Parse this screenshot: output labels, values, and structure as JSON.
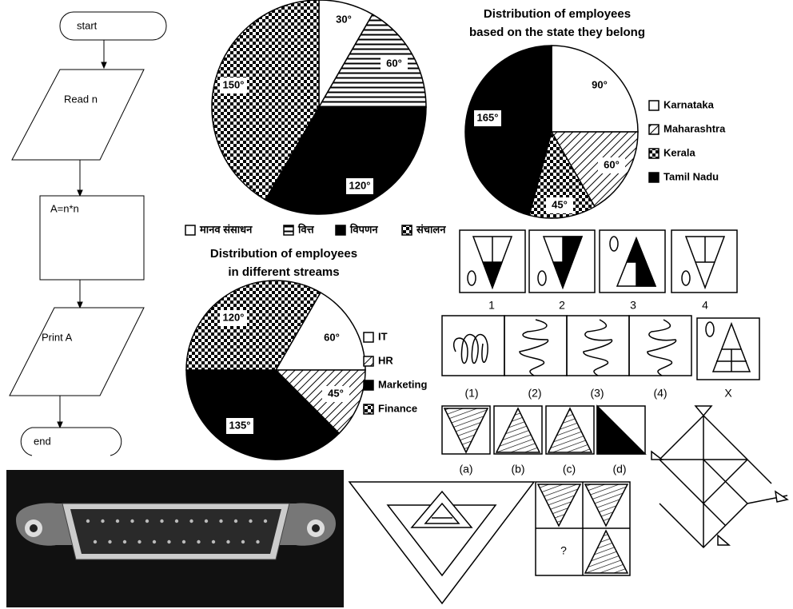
{
  "flowchart": {
    "nodes": [
      {
        "label": "start"
      },
      {
        "label": "Read n"
      },
      {
        "label": "A=n*n"
      },
      {
        "label": "Print A"
      },
      {
        "label": "end"
      }
    ]
  },
  "chart_data": [
    {
      "type": "pie",
      "categories": [
        "मानव संसाधन",
        "वित्त",
        "विपणन",
        "संचालन"
      ],
      "values": [
        30,
        60,
        120,
        150
      ],
      "value_labels": [
        "30°",
        "60°",
        "120°",
        "150°"
      ],
      "patterns": [
        "white",
        "horizontal",
        "black",
        "checker"
      ]
    },
    {
      "type": "pie",
      "title": [
        "Distribution of employees",
        "based on the state they belong"
      ],
      "categories": [
        "Karnataka",
        "Maharashtra",
        "Kerala",
        "Tamil Nadu"
      ],
      "values": [
        90,
        60,
        45,
        165
      ],
      "value_labels": [
        "90°",
        "60°",
        "45°",
        "165°"
      ],
      "patterns": [
        "white",
        "diagonal",
        "checker",
        "black"
      ]
    },
    {
      "type": "pie",
      "title": [
        "Distribution of employees",
        "in different streams"
      ],
      "categories": [
        "IT",
        "HR",
        "Marketing",
        "Finance"
      ],
      "values": [
        60,
        45,
        135,
        120
      ],
      "value_labels": [
        "60°",
        "45°",
        "135°",
        "120°"
      ],
      "patterns": [
        "white",
        "diagonal",
        "black",
        "checker"
      ]
    }
  ],
  "puzzles": {
    "row1_labels": [
      "1",
      "2",
      "3",
      "4"
    ],
    "row2_labels": [
      "(1)",
      "(2)",
      "(3)",
      "(4)",
      "X"
    ],
    "row3_labels": [
      "(a)",
      "(b)",
      "(c)",
      "(d)"
    ],
    "question": "?"
  }
}
